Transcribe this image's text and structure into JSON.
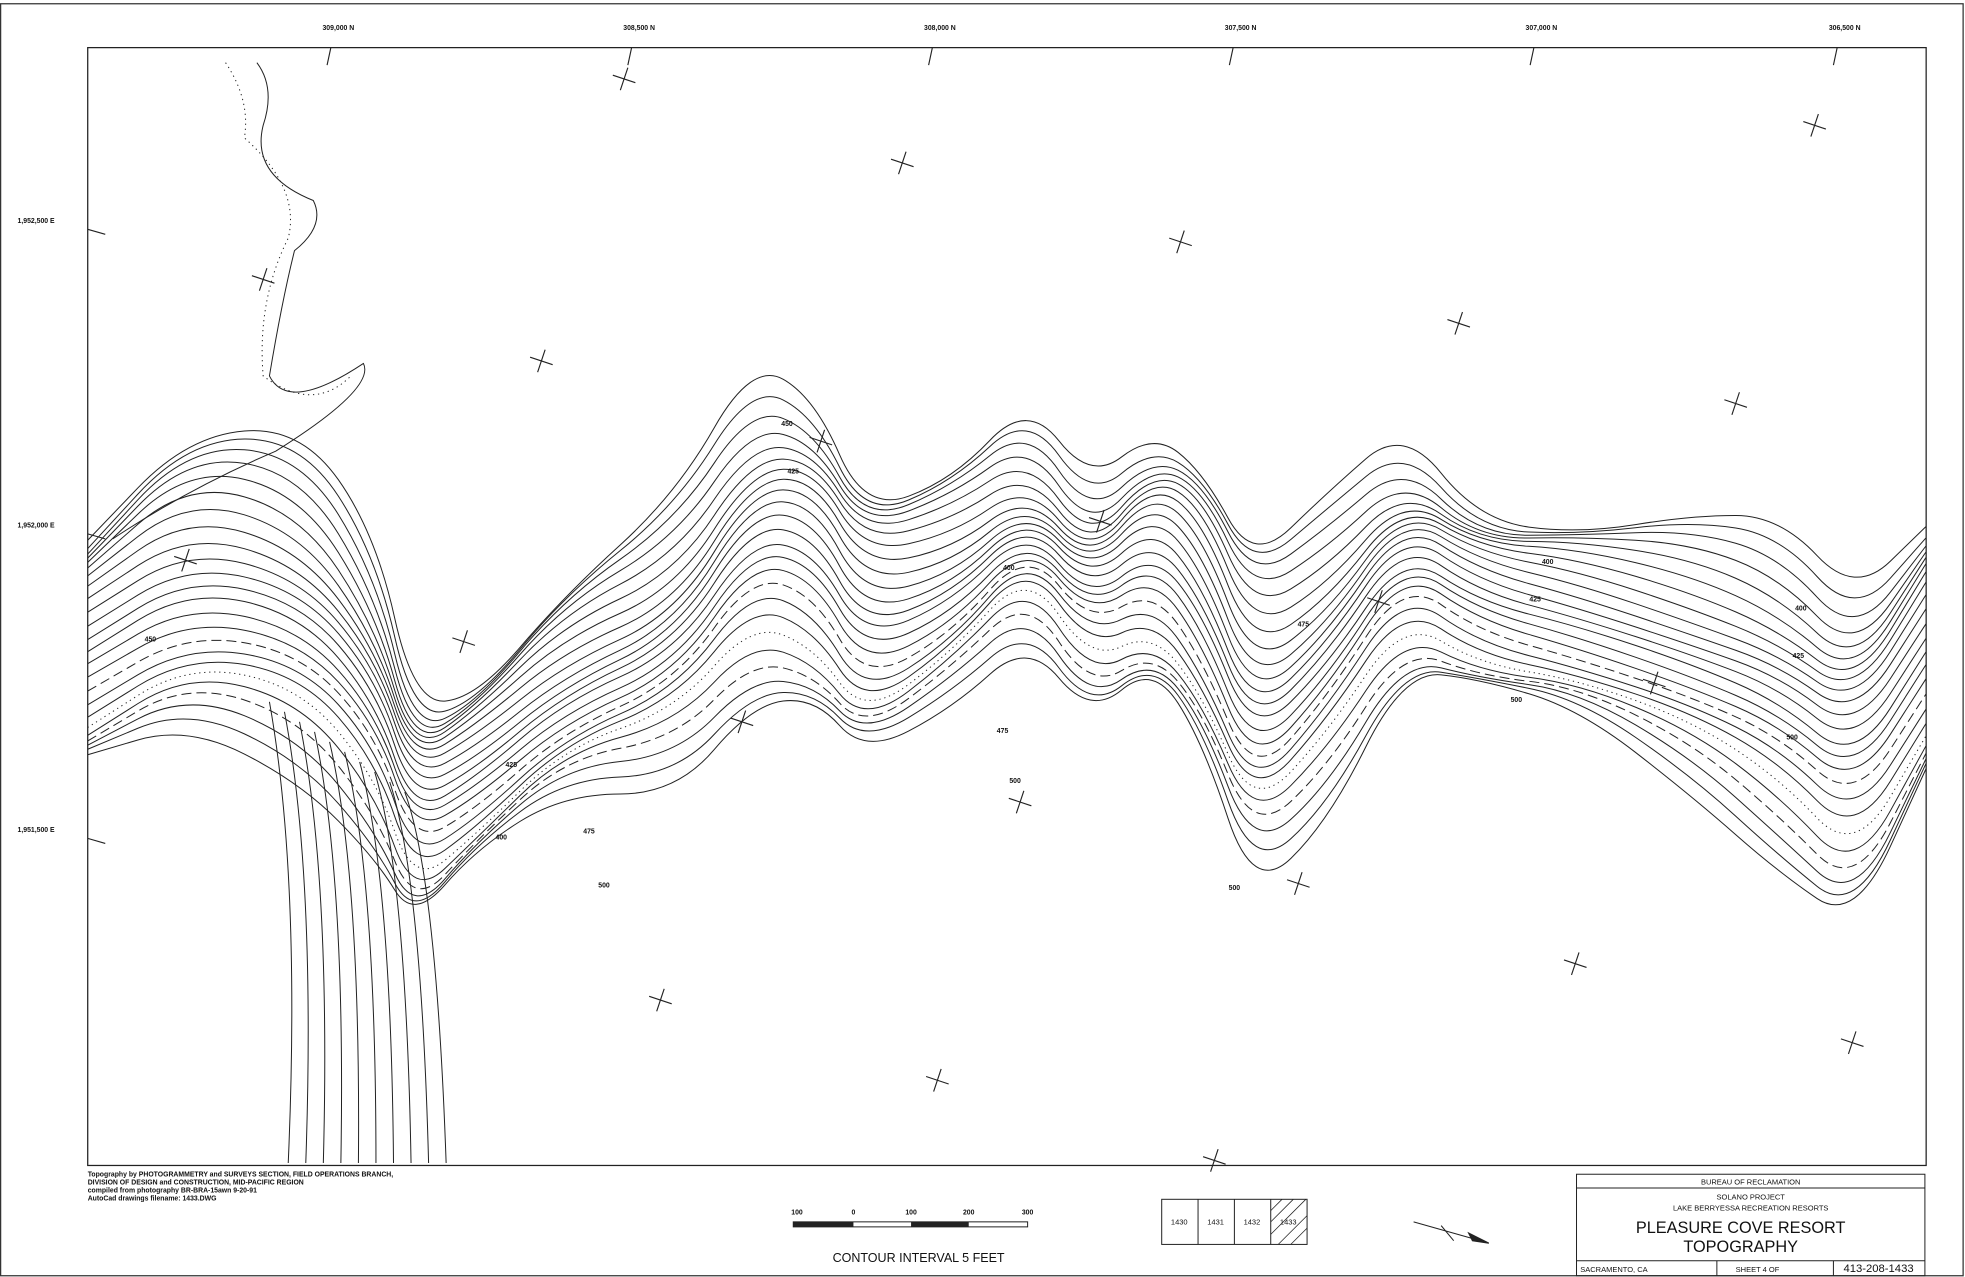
{
  "grid_labels_top": [
    "309,000 N",
    "308,500 N",
    "308,000 N",
    "307,500 N",
    "307,000 N",
    "306,500 N"
  ],
  "grid_labels_left": [
    "1,952,500 E",
    "1,952,000 E",
    "1,951,500 E"
  ],
  "credits": [
    "Topography by PHOTOGRAMMETRY and SURVEYS SECTION, FIELD OPERATIONS BRANCH,",
    "DIVISION OF DESIGN and CONSTRUCTION, MID-PACIFIC REGION",
    "compiled from photography BR-BRA-15awn 9-20-91",
    "AutoCad drawings filename: 1433.DWG"
  ],
  "scale_labels": [
    "100",
    "0",
    "100",
    "200",
    "300"
  ],
  "contour_interval": "CONTOUR INTERVAL 5 FEET",
  "sheet_index": [
    "1430",
    "1431",
    "1432",
    "1433"
  ],
  "title_block": {
    "agency": "BUREAU OF RECLAMATION",
    "project": "SOLANO PROJECT",
    "program": "LAKE BERRYESSA RECREATION RESORTS",
    "title": "PLEASURE COVE RESORT",
    "subtitle": "TOPOGRAPHY",
    "location": "SACRAMENTO, CA",
    "sheet": "SHEET 4 OF",
    "drawing_number": "413-208-1433"
  },
  "contour_labels": [
    "450",
    "425",
    "400",
    "475",
    "500",
    "450",
    "425",
    "400",
    "475",
    "500",
    "400",
    "425",
    "500",
    "475",
    "500",
    "400",
    "425",
    "500"
  ]
}
